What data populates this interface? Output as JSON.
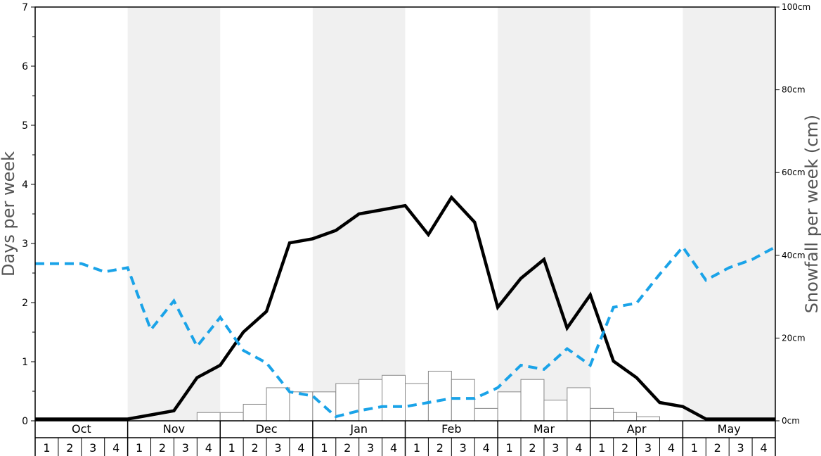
{
  "chart_data": {
    "type": "bar",
    "title": "",
    "ylabel_left": "Days per week",
    "ylabel_right": "Snowfall per week (cm)",
    "ylim_left": [
      0,
      7
    ],
    "ylim_right": [
      0,
      100
    ],
    "yticks_left": [
      "0",
      "1",
      "2",
      "3",
      "4",
      "5",
      "6",
      "7"
    ],
    "yticks_right": [
      "0cm",
      "20cm",
      "40cm",
      "60cm",
      "80cm",
      "100cm"
    ],
    "months": [
      "Oct",
      "Nov",
      "Dec",
      "Jan",
      "Feb",
      "Mar",
      "Apr",
      "May"
    ],
    "week_labels": [
      "1",
      "2",
      "3",
      "4"
    ],
    "grid": false,
    "series": [
      {
        "kind": "bar",
        "axis": "right",
        "color": "#ffffff",
        "edge_color": "#888888",
        "values": [
          0,
          0,
          0,
          0,
          0,
          0,
          0,
          2,
          2,
          4,
          8,
          7,
          7,
          9,
          10,
          11,
          9,
          12,
          10,
          3,
          7,
          10,
          5,
          8,
          3,
          2,
          1,
          0,
          0,
          0,
          0,
          0
        ]
      },
      {
        "kind": "line",
        "axis": "left",
        "color": "#000000",
        "style": "solid",
        "values": [
          0.03,
          0.03,
          0.03,
          0.03,
          0.03,
          0.1,
          0.17,
          0.73,
          0.94,
          1.5,
          1.85,
          3.01,
          3.08,
          3.22,
          3.5,
          3.57,
          3.64,
          3.15,
          3.78,
          3.36,
          1.92,
          2.41,
          2.73,
          1.57,
          2.13,
          1.01,
          0.73,
          0.31,
          0.24,
          0.03,
          0.03,
          0.03,
          0.03
        ]
      },
      {
        "kind": "line",
        "axis": "left",
        "color": "#1aa3e8",
        "style": "dashed",
        "values": [
          2.66,
          2.66,
          2.66,
          2.52,
          2.59,
          1.54,
          2.03,
          1.26,
          1.75,
          1.19,
          0.98,
          0.49,
          0.42,
          0.07,
          0.17,
          0.24,
          0.24,
          0.31,
          0.38,
          0.38,
          0.56,
          0.94,
          0.87,
          1.22,
          0.94,
          1.92,
          1.99,
          2.48,
          2.94,
          2.38,
          2.59,
          2.73,
          2.94
        ]
      }
    ]
  }
}
